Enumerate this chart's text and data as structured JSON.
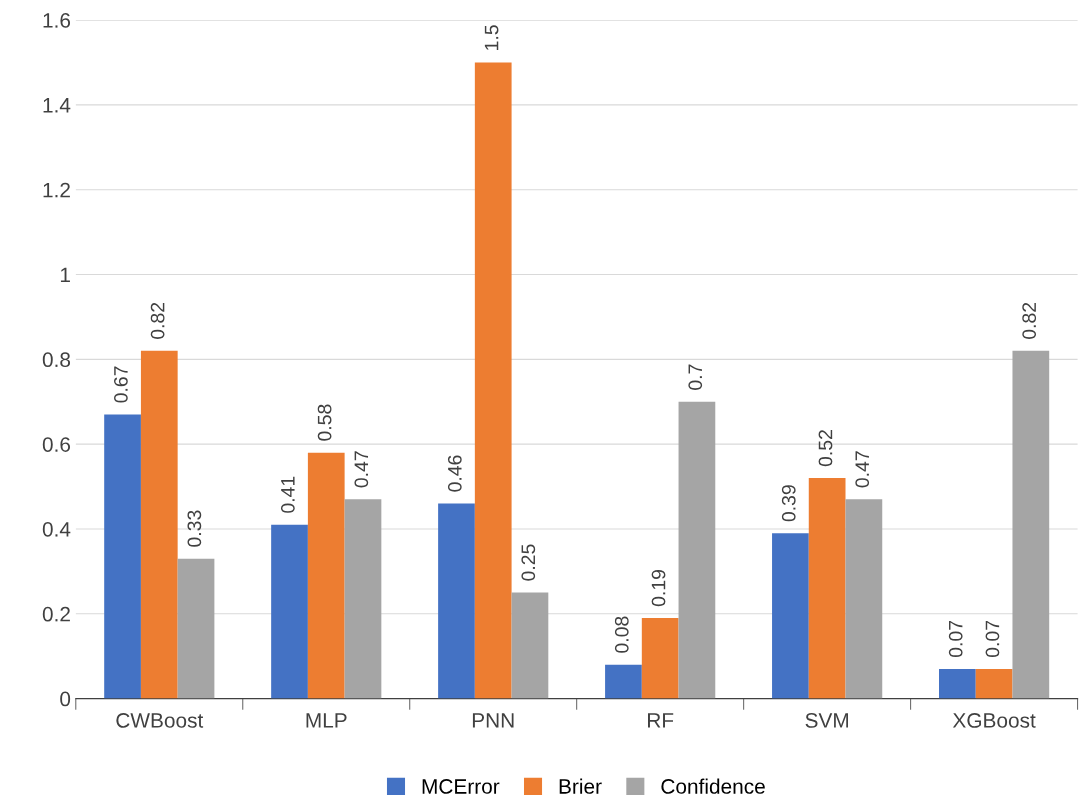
{
  "chart_data": {
    "type": "bar",
    "categories": [
      "CWBoost",
      "MLP",
      "PNN",
      "RF",
      "SVM",
      "XGBoost"
    ],
    "series": [
      {
        "name": "MCError",
        "color": "#4472c4",
        "values": [
          0.67,
          0.41,
          0.46,
          0.08,
          0.39,
          0.07
        ]
      },
      {
        "name": "Brier",
        "color": "#ed7d31",
        "values": [
          0.82,
          0.58,
          1.5,
          0.19,
          0.52,
          0.07
        ]
      },
      {
        "name": "Confidence",
        "color": "#a5a5a5",
        "values": [
          0.33,
          0.47,
          0.25,
          0.7,
          0.47,
          0.82
        ]
      }
    ],
    "ylim": [
      0,
      1.6
    ],
    "yticks": [
      0,
      {
        "value": 0.2,
        "label": "0.2"
      },
      {
        "value": 0.4,
        "label": "0.4"
      },
      {
        "value": 0.6,
        "label": "0.6"
      },
      {
        "value": 0.8,
        "label": "0.8"
      },
      1,
      {
        "value": 1.2,
        "label": "1.2"
      },
      {
        "value": 1.4,
        "label": "1.4"
      },
      {
        "value": 1.6,
        "label": "1.6"
      }
    ],
    "grid": "y",
    "legend": "bottom",
    "data_labels": true
  }
}
